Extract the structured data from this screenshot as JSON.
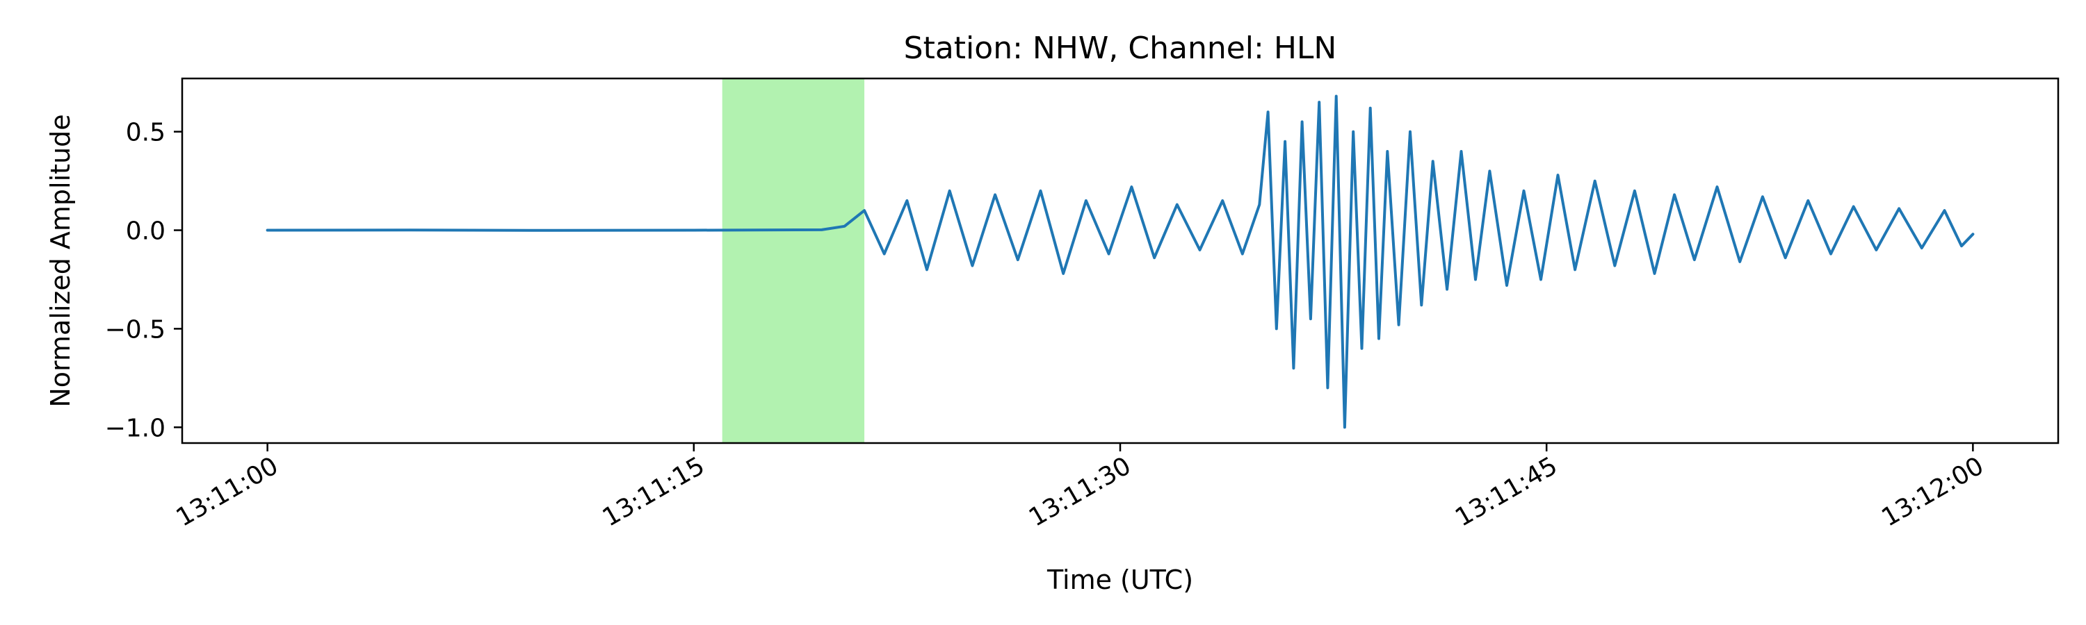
{
  "chart_data": {
    "type": "line",
    "title": "Station: NHW, Channel: HLN",
    "xlabel": "Time (UTC)",
    "ylabel": "Normalized Amplitude",
    "x_start": "13:11:00",
    "x_end": "13:12:00",
    "xlim_seconds": [
      -3,
      63
    ],
    "ylim": [
      -1.08,
      0.77
    ],
    "x_ticks": [
      {
        "value": 0,
        "label": "13:11:00"
      },
      {
        "value": 15,
        "label": "13:11:15"
      },
      {
        "value": 30,
        "label": "13:11:30"
      },
      {
        "value": 45,
        "label": "13:11:45"
      },
      {
        "value": 60,
        "label": "13:12:00"
      }
    ],
    "y_ticks": [
      {
        "value": 0.5,
        "label": "0.5"
      },
      {
        "value": 0.0,
        "label": "0.0"
      },
      {
        "value": -0.5,
        "label": "−0.5"
      },
      {
        "value": -1.0,
        "label": "−1.0"
      }
    ],
    "highlight_window": {
      "start": 16.0,
      "end": 21.0,
      "color": "#b2f2b0"
    },
    "series": [
      {
        "color": "#1f77b4",
        "x": [
          0,
          5,
          10,
          15,
          19.5,
          20.3,
          21.0,
          21.7,
          22.5,
          23.2,
          24.0,
          24.8,
          25.6,
          26.4,
          27.2,
          28.0,
          28.8,
          29.6,
          30.4,
          31.2,
          32.0,
          32.8,
          33.6,
          34.3,
          34.9,
          35.2,
          35.5,
          35.8,
          36.1,
          36.4,
          36.7,
          37.0,
          37.3,
          37.6,
          37.9,
          38.2,
          38.5,
          38.8,
          39.1,
          39.4,
          39.8,
          40.2,
          40.6,
          41.0,
          41.5,
          42.0,
          42.5,
          43.0,
          43.6,
          44.2,
          44.8,
          45.4,
          46.0,
          46.7,
          47.4,
          48.1,
          48.8,
          49.5,
          50.2,
          51.0,
          51.8,
          52.6,
          53.4,
          54.2,
          55.0,
          55.8,
          56.6,
          57.4,
          58.2,
          59.0,
          59.6,
          60.0
        ],
        "y": [
          0,
          0.001,
          -0.001,
          0,
          0.002,
          0.02,
          0.1,
          -0.12,
          0.15,
          -0.2,
          0.2,
          -0.18,
          0.18,
          -0.15,
          0.2,
          -0.22,
          0.15,
          -0.12,
          0.22,
          -0.14,
          0.13,
          -0.1,
          0.15,
          -0.12,
          0.13,
          0.6,
          -0.5,
          0.45,
          -0.7,
          0.55,
          -0.45,
          0.65,
          -0.8,
          0.68,
          -1.0,
          0.5,
          -0.6,
          0.62,
          -0.55,
          0.4,
          -0.48,
          0.5,
          -0.38,
          0.35,
          -0.3,
          0.4,
          -0.25,
          0.3,
          -0.28,
          0.2,
          -0.25,
          0.28,
          -0.2,
          0.25,
          -0.18,
          0.2,
          -0.22,
          0.18,
          -0.15,
          0.22,
          -0.16,
          0.17,
          -0.14,
          0.15,
          -0.12,
          0.12,
          -0.1,
          0.11,
          -0.09,
          0.1,
          -0.08,
          -0.02
        ]
      }
    ],
    "grid": false,
    "legend": "none"
  }
}
